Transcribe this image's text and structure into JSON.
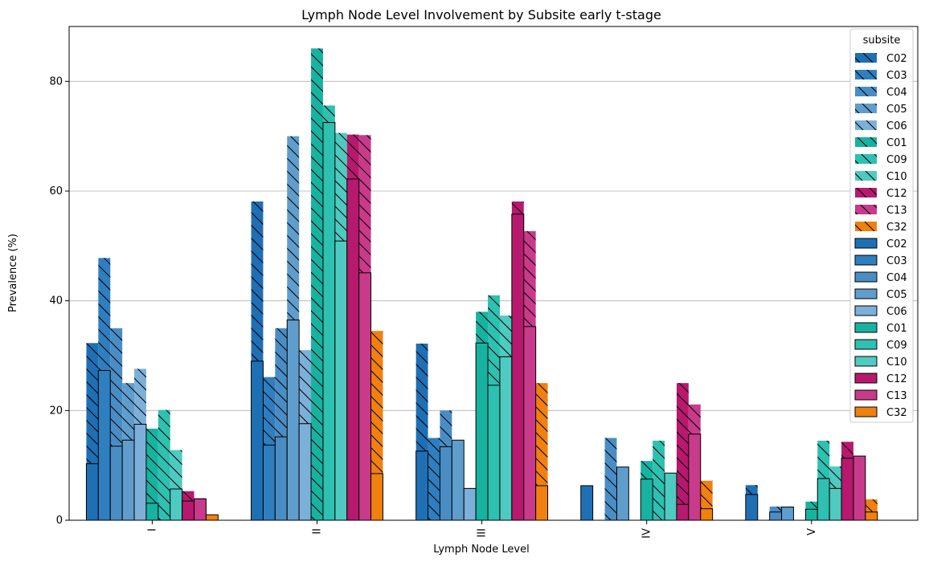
{
  "chart_data": {
    "type": "bar",
    "title": "Lymph Node Level Involvement by Subsite early t-stage",
    "xlabel": "Lymph Node Level",
    "ylabel": "Prevalence (%)",
    "categories": [
      "I",
      "II",
      "III",
      "IV",
      "V"
    ],
    "ylim": [
      0,
      90
    ],
    "yticks": [
      0,
      20,
      40,
      60,
      80
    ],
    "grid": "horizontal",
    "legend_title": "subsite",
    "legend_position": "top-right",
    "hatched_series": [
      {
        "name": "C02",
        "color": "#1f6fb4",
        "values": [
          32.3,
          58.1,
          32.2,
          6.3,
          6.4
        ]
      },
      {
        "name": "C03",
        "color": "#2f7ebf",
        "values": [
          47.8,
          26.1,
          15.0,
          0,
          0
        ]
      },
      {
        "name": "C04",
        "color": "#4a8dc5",
        "values": [
          35.0,
          35.0,
          20.0,
          15.0,
          2.5
        ]
      },
      {
        "name": "C05",
        "color": "#5f9dcc",
        "values": [
          25.0,
          70.0,
          7.0,
          3.3,
          2.5
        ]
      },
      {
        "name": "C06",
        "color": "#7cb0d9",
        "values": [
          27.6,
          31.0,
          0,
          0,
          0
        ]
      },
      {
        "name": "C01",
        "color": "#17b3a0",
        "values": [
          16.7,
          86.0,
          38.0,
          10.8,
          3.4
        ]
      },
      {
        "name": "C09",
        "color": "#2ec0b1",
        "values": [
          20.1,
          75.6,
          41.0,
          14.5,
          14.5
        ]
      },
      {
        "name": "C10",
        "color": "#4fcac0",
        "values": [
          12.8,
          70.6,
          37.3,
          7.8,
          9.8
        ]
      },
      {
        "name": "C12",
        "color": "#b6196d",
        "values": [
          5.3,
          70.3,
          58.1,
          25.0,
          14.3
        ]
      },
      {
        "name": "C13",
        "color": "#c83a8a",
        "values": [
          4.0,
          70.2,
          52.7,
          21.1,
          7.9
        ]
      },
      {
        "name": "C32",
        "color": "#f08010",
        "values": [
          1.0,
          34.5,
          25.0,
          7.2,
          3.8
        ]
      }
    ],
    "outlined_series": [
      {
        "name": "C02",
        "color": "#1f6fb4",
        "values": [
          10.3,
          29.0,
          12.6,
          6.3,
          4.7
        ]
      },
      {
        "name": "C03",
        "color": "#2f7ebf",
        "values": [
          27.3,
          13.7,
          0,
          0,
          0
        ]
      },
      {
        "name": "C04",
        "color": "#4a8dc5",
        "values": [
          13.5,
          15.2,
          13.4,
          0,
          1.5
        ]
      },
      {
        "name": "C05",
        "color": "#5f9dcc",
        "values": [
          14.6,
          36.5,
          14.6,
          9.7,
          2.4
        ]
      },
      {
        "name": "C06",
        "color": "#7cb0d9",
        "values": [
          17.5,
          17.6,
          5.8,
          0,
          0
        ]
      },
      {
        "name": "C01",
        "color": "#17b3a0",
        "values": [
          3.1,
          0,
          32.3,
          7.5,
          2.0
        ]
      },
      {
        "name": "C09",
        "color": "#2ec0b1",
        "values": [
          0,
          72.5,
          24.6,
          0,
          7.6
        ]
      },
      {
        "name": "C10",
        "color": "#4fcac0",
        "values": [
          5.7,
          50.9,
          29.8,
          8.6,
          5.8
        ]
      },
      {
        "name": "C12",
        "color": "#b6196d",
        "values": [
          3.5,
          62.2,
          55.8,
          2.9,
          11.3
        ]
      },
      {
        "name": "C13",
        "color": "#c83a8a",
        "values": [
          3.9,
          45.1,
          35.3,
          15.7,
          11.7
        ]
      },
      {
        "name": "C32",
        "color": "#f08010",
        "values": [
          1.0,
          8.5,
          6.3,
          2.1,
          1.5
        ]
      }
    ]
  }
}
